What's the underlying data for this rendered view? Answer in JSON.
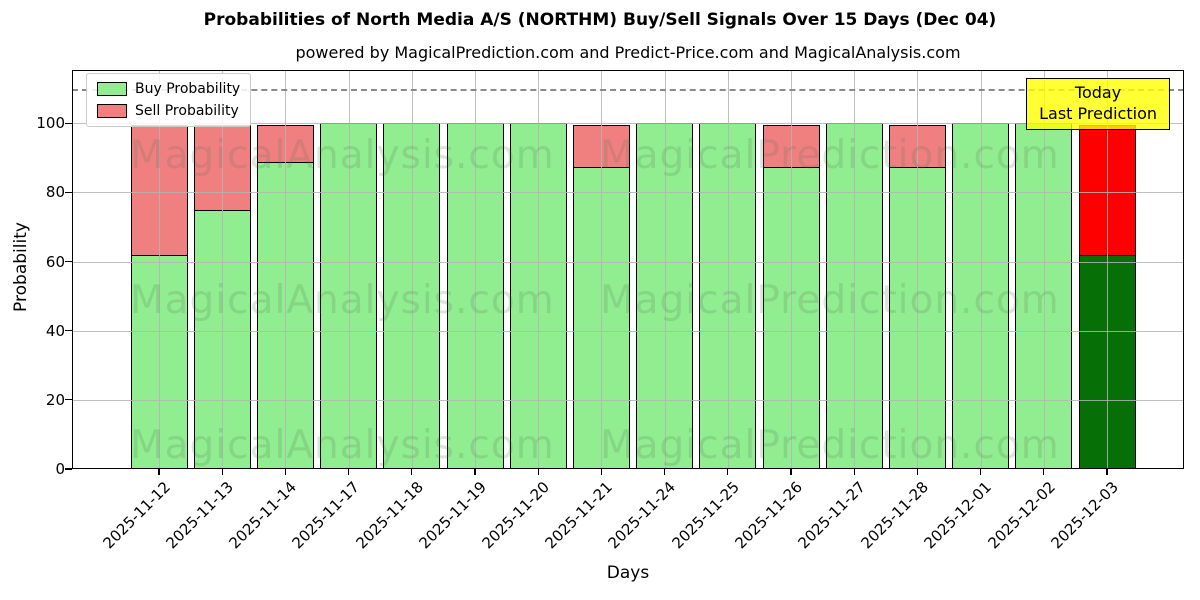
{
  "title": "Probabilities of North Media A/S (NORTHM) Buy/Sell Signals Over 15 Days (Dec 04)",
  "subtitle": "powered by MagicalPrediction.com and Predict-Price.com and MagicalAnalysis.com",
  "legend": {
    "buy_label": "Buy Probability",
    "sell_label": "Sell Probability"
  },
  "annotation": {
    "line1": "Today",
    "line2": "Last Prediction"
  },
  "watermarks": {
    "left_text": "MagicalAnalysis.com",
    "right_text": "MagicalPrediction.com"
  },
  "colors": {
    "buy": "#90EE90",
    "sell": "#F08080",
    "today_buy": "#066f06",
    "today_sell": "#ff0000",
    "bar_edge": "#000000",
    "annotation_bg": "#ffff00",
    "grid": "#b4b4b4",
    "dashed_line": "#8a8a8a"
  },
  "chart_data": {
    "type": "bar",
    "stacked": true,
    "title": "Probabilities of North Media A/S (NORTHM) Buy/Sell Signals Over 15 Days (Dec 04)",
    "xlabel": "Days",
    "ylabel": "Probability",
    "categories": [
      "2025-11-12",
      "2025-11-13",
      "2025-11-14",
      "2025-11-17",
      "2025-11-18",
      "2025-11-19",
      "2025-11-20",
      "2025-11-21",
      "2025-11-24",
      "2025-11-25",
      "2025-11-26",
      "2025-11-27",
      "2025-11-28",
      "2025-12-01",
      "2025-12-02",
      "2025-12-03"
    ],
    "series": [
      {
        "name": "Buy Probability",
        "color": "#90EE90",
        "values": [
          62,
          75,
          89,
          100,
          100,
          100,
          100,
          87.5,
          100,
          100,
          87.5,
          100,
          87.5,
          100,
          100,
          62
        ]
      },
      {
        "name": "Sell Probability",
        "color": "#F08080",
        "values": [
          38,
          25,
          11,
          0,
          0,
          0,
          0,
          12.5,
          0,
          0,
          12.5,
          0,
          12.5,
          0,
          0,
          38
        ]
      }
    ],
    "today_index": 15,
    "today_colors": {
      "buy": "#066f06",
      "sell": "#ff0000"
    },
    "yticks": [
      0,
      20,
      40,
      60,
      80,
      100
    ],
    "ylim": [
      0,
      115
    ],
    "dashed_line_y": 110,
    "grid": true,
    "legend_position": "upper left"
  }
}
